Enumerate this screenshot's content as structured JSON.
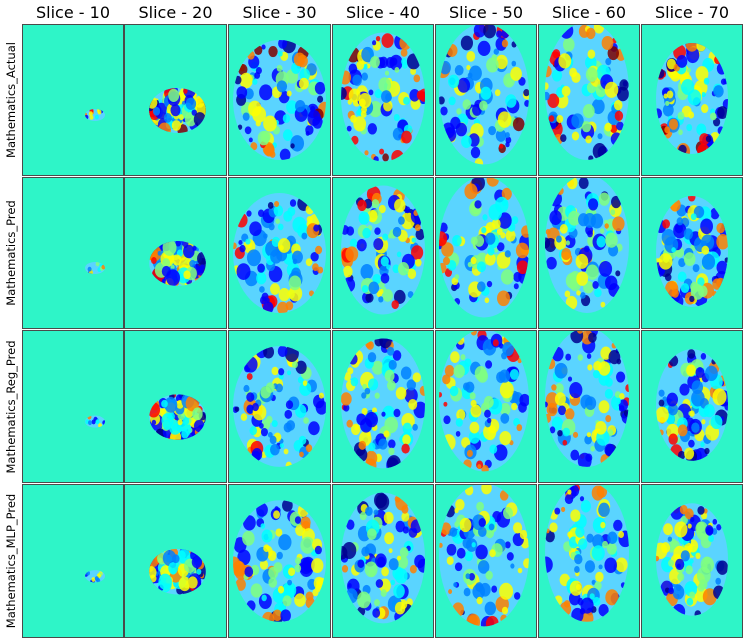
{
  "figure": {
    "columns": [
      "Slice - 10",
      "Slice - 20",
      "Slice - 30",
      "Slice - 40",
      "Slice - 50",
      "Slice - 60",
      "Slice - 70"
    ],
    "rows": [
      "Mathematics_Actual",
      "Mathematics_Pred",
      "Mathematics_Reg_Pred",
      "Mathematics_MLP_Pred"
    ],
    "background_color": "#2ef5c8",
    "colormap": [
      "#00008f",
      "#0000ff",
      "#0080ff",
      "#00ffff",
      "#80ff80",
      "#ffff00",
      "#ff8000",
      "#ff0000",
      "#800000"
    ]
  }
}
